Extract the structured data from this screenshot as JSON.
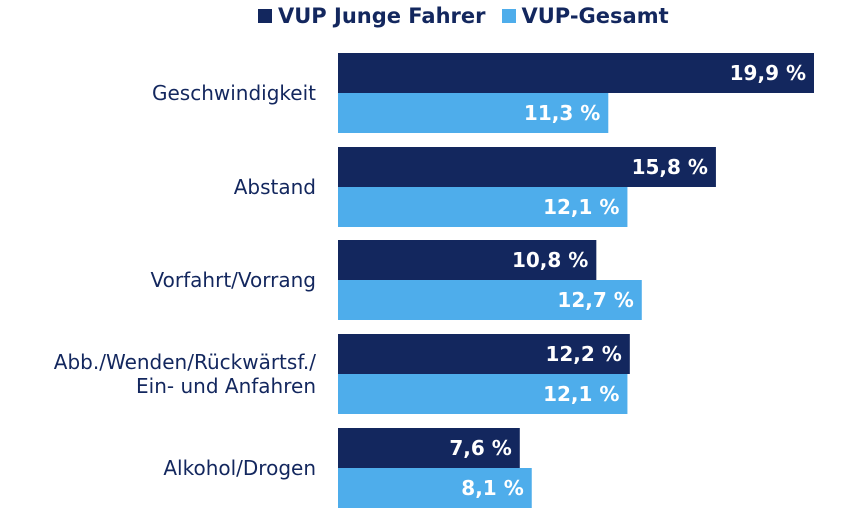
{
  "chart_data": {
    "type": "bar",
    "orientation": "horizontal",
    "categories": [
      [
        "Geschwindigkeit"
      ],
      [
        "Abstand"
      ],
      [
        "Vorfahrt/Vorrang"
      ],
      [
        "Abb./Wenden/Rückwärtsf./",
        "Ein- und Anfahren"
      ],
      [
        "Alkohol/Drogen"
      ]
    ],
    "series": [
      {
        "name": "VUP Junge Fahrer",
        "values": [
          19.9,
          15.8,
          10.8,
          12.2,
          7.6
        ],
        "labels": [
          "19,9 %",
          "15,8 %",
          "10,8 %",
          "12,2 %",
          "7,6 %"
        ],
        "color": "#13275e"
      },
      {
        "name": "VUP-Gesamt",
        "values": [
          11.3,
          12.1,
          12.7,
          12.1,
          8.1
        ],
        "labels": [
          "11,3 %",
          "12,1 %",
          "12,7 %",
          "12,1 %",
          "8,1 %"
        ],
        "color": "#4eadeb"
      }
    ],
    "legend_position": "top",
    "grid": false
  }
}
